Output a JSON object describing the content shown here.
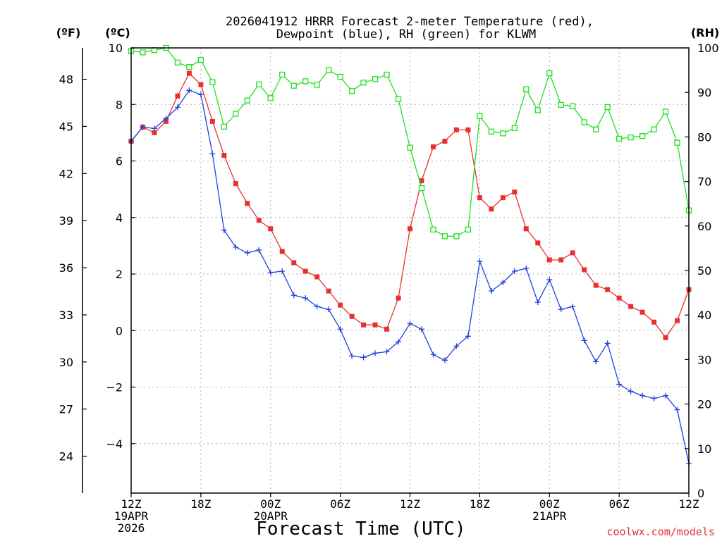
{
  "chart_data": {
    "type": "line",
    "title_line1": "2026041912 HRRR Forecast 2-meter Temperature (red),",
    "title_line2": "Dewpoint (blue), RH (green) for KLWM",
    "xlabel": "Forecast Time (UTC)",
    "credit": "coolwx.com/models",
    "units": {
      "fahrenheit": "(ºF)",
      "celsius": "(ºC)",
      "rh": "(RH)"
    },
    "x_range_hours": [
      0,
      48
    ],
    "x_ticks": [
      {
        "hour": 0,
        "label": "12Z",
        "label2": "19APR",
        "label3": "2026"
      },
      {
        "hour": 6,
        "label": "18Z"
      },
      {
        "hour": 12,
        "label": "00Z",
        "label2": "20APR"
      },
      {
        "hour": 18,
        "label": "06Z"
      },
      {
        "hour": 24,
        "label": "12Z"
      },
      {
        "hour": 30,
        "label": "18Z"
      },
      {
        "hour": 36,
        "label": "00Z",
        "label2": "21APR"
      },
      {
        "hour": 42,
        "label": "06Z"
      },
      {
        "hour": 48,
        "label": "12Z"
      }
    ],
    "y_celsius": {
      "range": [
        -5.75,
        10
      ],
      "ticks": [
        -4,
        -2,
        0,
        2,
        4,
        6,
        8,
        10
      ]
    },
    "y_fahrenheit": {
      "ticks": [
        24,
        27,
        30,
        33,
        36,
        39,
        42,
        45,
        48
      ]
    },
    "y_rh": {
      "range": [
        0,
        100
      ],
      "ticks": [
        0,
        10,
        20,
        30,
        40,
        50,
        60,
        70,
        80,
        90,
        100
      ]
    },
    "grid": true,
    "colors": {
      "temperature": "#e83030",
      "dewpoint": "#2040e0",
      "rh": "#20e020"
    },
    "series": [
      {
        "name": "Temperature",
        "axis": "celsius",
        "color": "#e83030",
        "marker": "filled-square",
        "values": [
          6.7,
          7.2,
          7.0,
          7.4,
          8.3,
          9.1,
          8.7,
          7.4,
          6.2,
          5.2,
          4.5,
          3.9,
          3.6,
          2.8,
          2.4,
          2.1,
          1.9,
          1.4,
          0.9,
          0.5,
          0.2,
          0.2,
          0.05,
          1.15,
          3.6,
          5.3,
          6.5,
          6.7,
          7.1,
          7.1,
          4.7,
          4.3,
          4.7,
          4.9,
          3.6,
          3.1,
          2.5,
          2.5,
          2.75,
          2.15,
          1.6,
          1.45,
          1.15,
          0.85,
          0.65,
          0.3,
          -0.25,
          0.35,
          1.45
        ]
      },
      {
        "name": "Dewpoint",
        "axis": "celsius",
        "color": "#2040e0",
        "marker": "plus",
        "values": [
          6.7,
          7.2,
          7.15,
          7.5,
          7.9,
          8.5,
          8.35,
          6.25,
          3.55,
          2.95,
          2.75,
          2.85,
          2.05,
          2.1,
          1.25,
          1.15,
          0.85,
          0.75,
          0.05,
          -0.9,
          -0.95,
          -0.8,
          -0.75,
          -0.4,
          0.25,
          0.05,
          -0.85,
          -1.05,
          -0.55,
          -0.2,
          2.45,
          1.4,
          1.7,
          2.1,
          2.2,
          1.0,
          1.8,
          0.75,
          0.85,
          -0.35,
          -1.1,
          -0.45,
          -1.9,
          -2.15,
          -2.3,
          -2.4,
          -2.3,
          -2.8,
          -4.7
        ]
      },
      {
        "name": "RH",
        "axis": "rh",
        "color": "#20e020",
        "marker": "open-square",
        "values": [
          99.3,
          99.0,
          99.5,
          100.0,
          96.7,
          95.7,
          97.3,
          92.3,
          82.3,
          85.2,
          88.2,
          91.8,
          88.7,
          94.0,
          91.5,
          92.5,
          91.7,
          95.0,
          93.5,
          90.3,
          92.2,
          93.0,
          94.0,
          88.5,
          77.6,
          68.5,
          59.2,
          57.7,
          57.7,
          59.2,
          84.7,
          81.2,
          80.8,
          82.0,
          90.7,
          86.0,
          94.3,
          87.2,
          86.9,
          83.3,
          81.7,
          86.7,
          79.6,
          79.9,
          80.2,
          81.7,
          85.7,
          78.7,
          63.5
        ]
      }
    ]
  }
}
